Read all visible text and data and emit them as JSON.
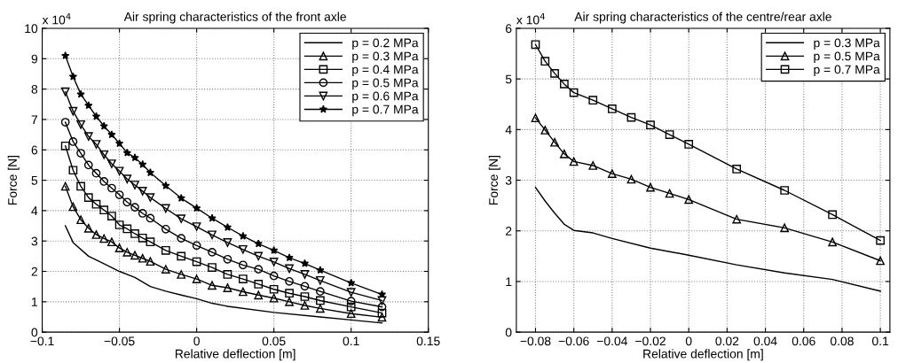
{
  "chart_data": [
    {
      "type": "line",
      "title": "Air spring characteristics of the front axle",
      "xlabel": "Relative deflection [m]",
      "ylabel": "Force [N]",
      "annotations": [
        "x 10$^{4}$"
      ],
      "xlim": [
        -0.1,
        0.15
      ],
      "xticks": [
        {
          "value": -0.1,
          "label": "−0.1"
        },
        {
          "value": -0.05,
          "label": "−0.05"
        },
        0,
        0.05,
        0.1,
        0.15
      ],
      "ylim": [
        0,
        10
      ],
      "yticks": [
        0,
        1,
        2,
        3,
        4,
        5,
        6,
        7,
        8,
        9,
        10
      ],
      "grid": true,
      "legend": "top right",
      "series": [
        {
          "name": "p = 0.2 MPa",
          "color": "#000000",
          "marker": "none",
          "x": [
            -0.085,
            -0.08,
            -0.07,
            -0.06,
            -0.05,
            -0.04,
            -0.03,
            -0.02,
            -0.01,
            0,
            0.01,
            0.02,
            0.05,
            0.08,
            0.1,
            0.12
          ],
          "values": [
            3.5,
            2.95,
            2.5,
            2.25,
            2.0,
            1.8,
            1.5,
            1.35,
            1.22,
            1.1,
            0.95,
            0.85,
            0.65,
            0.5,
            0.4,
            0.3
          ]
        },
        {
          "name": "p = 0.3 MPa",
          "color": "#000000",
          "marker": "triangle",
          "x": [
            -0.085,
            -0.08,
            -0.075,
            -0.07,
            -0.065,
            -0.06,
            -0.055,
            -0.05,
            -0.045,
            -0.04,
            -0.035,
            -0.03,
            -0.02,
            -0.01,
            0,
            0.01,
            0.02,
            0.03,
            0.04,
            0.05,
            0.06,
            0.07,
            0.08,
            0.1,
            0.12
          ],
          "values": [
            4.8,
            4.13,
            3.7,
            3.42,
            3.21,
            3.08,
            2.97,
            2.77,
            2.63,
            2.53,
            2.43,
            2.33,
            2.07,
            1.9,
            1.75,
            1.54,
            1.46,
            1.33,
            1.22,
            1.12,
            1.0,
            0.88,
            0.78,
            0.61,
            0.49
          ]
        },
        {
          "name": "p = 0.4 MPa",
          "color": "#000000",
          "marker": "square",
          "x": [
            -0.085,
            -0.08,
            -0.075,
            -0.07,
            -0.065,
            -0.06,
            -0.055,
            -0.05,
            -0.045,
            -0.04,
            -0.035,
            -0.03,
            -0.02,
            -0.01,
            0,
            0.01,
            0.02,
            0.03,
            0.04,
            0.05,
            0.06,
            0.07,
            0.08,
            0.1,
            0.12
          ],
          "values": [
            6.13,
            5.33,
            4.8,
            4.43,
            4.21,
            4.02,
            3.82,
            3.53,
            3.4,
            3.24,
            3.1,
            2.97,
            2.69,
            2.5,
            2.32,
            2.13,
            1.9,
            1.75,
            1.58,
            1.41,
            1.28,
            1.17,
            1.04,
            0.83,
            0.63
          ]
        },
        {
          "name": "p = 0.5 MPa",
          "color": "#000000",
          "marker": "circle",
          "x": [
            -0.085,
            -0.08,
            -0.075,
            -0.07,
            -0.065,
            -0.06,
            -0.055,
            -0.05,
            -0.045,
            -0.04,
            -0.035,
            -0.03,
            -0.02,
            -0.01,
            0,
            0.01,
            0.02,
            0.03,
            0.04,
            0.05,
            0.06,
            0.07,
            0.08,
            0.1,
            0.12
          ],
          "values": [
            6.91,
            6.27,
            5.89,
            5.5,
            5.23,
            4.96,
            4.74,
            4.52,
            4.28,
            4.11,
            3.91,
            3.75,
            3.39,
            3.09,
            2.85,
            2.63,
            2.4,
            2.21,
            2.07,
            1.85,
            1.67,
            1.51,
            1.34,
            1.02,
            0.83
          ]
        },
        {
          "name": "p = 0.6 MPa",
          "color": "#000000",
          "marker": "triangle_down",
          "x": [
            -0.085,
            -0.08,
            -0.075,
            -0.07,
            -0.065,
            -0.06,
            -0.055,
            -0.05,
            -0.045,
            -0.04,
            -0.035,
            -0.03,
            -0.02,
            -0.01,
            0,
            0.01,
            0.02,
            0.03,
            0.04,
            0.05,
            0.06,
            0.07,
            0.08,
            0.1,
            0.12
          ],
          "values": [
            7.91,
            7.27,
            6.83,
            6.44,
            6.18,
            5.84,
            5.54,
            5.3,
            5.04,
            4.84,
            4.64,
            4.43,
            4.07,
            3.73,
            3.47,
            3.2,
            2.95,
            2.72,
            2.5,
            2.31,
            2.09,
            1.9,
            1.7,
            1.31,
            1.04
          ]
        },
        {
          "name": "p = 0.7 MPa",
          "color": "#000000",
          "marker": "star",
          "x": [
            -0.085,
            -0.08,
            -0.075,
            -0.07,
            -0.065,
            -0.06,
            -0.055,
            -0.05,
            -0.045,
            -0.04,
            -0.035,
            -0.03,
            -0.02,
            -0.01,
            0,
            0.01,
            0.02,
            0.03,
            0.04,
            0.05,
            0.06,
            0.07,
            0.08,
            0.1,
            0.12
          ],
          "values": [
            9.1,
            8.41,
            7.83,
            7.46,
            7.1,
            6.78,
            6.5,
            6.21,
            5.9,
            5.74,
            5.52,
            5.25,
            4.82,
            4.41,
            4.08,
            3.75,
            3.45,
            3.16,
            2.91,
            2.69,
            2.45,
            2.26,
            2.04,
            1.62,
            1.24
          ]
        }
      ]
    },
    {
      "type": "line",
      "title": "Air spring characteristics of the centre/rear axle",
      "xlabel": "Relative deflection [m]",
      "ylabel": "Force [N]",
      "annotations": [
        "x 10$^{4}$"
      ],
      "xlim": [
        -0.09,
        0.105
      ],
      "xticks": [
        {
          "value": -0.08,
          "label": "−0.08"
        },
        {
          "value": -0.06,
          "label": "−0.06"
        },
        {
          "value": -0.04,
          "label": "−0.04"
        },
        {
          "value": -0.02,
          "label": "−0.02"
        },
        0,
        0.02,
        0.04,
        0.06,
        0.08,
        0.1
      ],
      "ylim": [
        0,
        6
      ],
      "yticks": [
        0,
        1,
        2,
        3,
        4,
        5,
        6
      ],
      "grid": true,
      "legend": "top right",
      "series": [
        {
          "name": "p = 0.3 MPa",
          "color": "#000000",
          "marker": "none",
          "x": [
            -0.08,
            -0.075,
            -0.07,
            -0.065,
            -0.06,
            -0.05,
            -0.04,
            -0.02,
            0,
            0.025,
            0.05,
            0.075,
            0.1
          ],
          "values": [
            2.86,
            2.59,
            2.35,
            2.13,
            2.01,
            1.96,
            1.85,
            1.66,
            1.52,
            1.33,
            1.17,
            1.04,
            0.81
          ]
        },
        {
          "name": "p = 0.5 MPa",
          "color": "#000000",
          "marker": "triangle",
          "x": [
            -0.08,
            -0.075,
            -0.07,
            -0.065,
            -0.06,
            -0.05,
            -0.04,
            -0.03,
            -0.02,
            -0.01,
            0,
            0.025,
            0.05,
            0.075,
            0.1
          ],
          "values": [
            4.23,
            3.99,
            3.75,
            3.52,
            3.37,
            3.29,
            3.13,
            3.02,
            2.86,
            2.74,
            2.62,
            2.23,
            2.06,
            1.78,
            1.41
          ]
        },
        {
          "name": "p = 0.7 MPa",
          "color": "#000000",
          "marker": "square",
          "x": [
            -0.08,
            -0.075,
            -0.07,
            -0.065,
            -0.06,
            -0.05,
            -0.04,
            -0.03,
            -0.02,
            -0.01,
            0,
            0.025,
            0.05,
            0.075,
            0.1
          ],
          "values": [
            5.68,
            5.35,
            5.11,
            4.9,
            4.73,
            4.58,
            4.41,
            4.24,
            4.09,
            3.9,
            3.71,
            3.22,
            2.8,
            2.32,
            1.81
          ]
        }
      ]
    }
  ]
}
